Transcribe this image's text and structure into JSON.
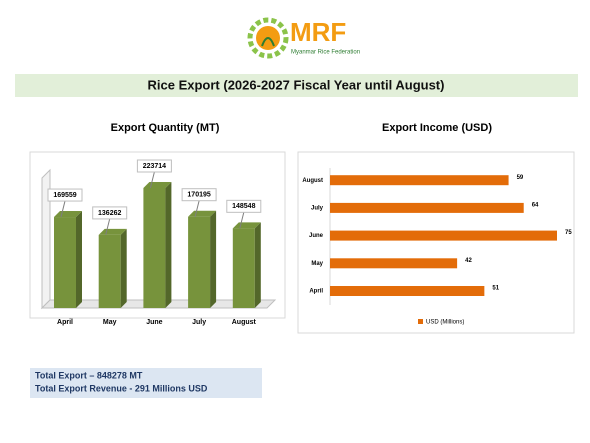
{
  "header": {
    "logo": "MRF",
    "tagline": "Myanmar Rice Federation"
  },
  "banner": {
    "title": "Rice Export (2026-2027 Fiscal Year until August)"
  },
  "chart_data": [
    {
      "type": "bar",
      "title": "Export Quantity (MT)",
      "categories": [
        "April",
        "May",
        "June",
        "July",
        "August"
      ],
      "values": [
        169559,
        136262,
        223714,
        170195,
        148548
      ],
      "color": "#77933c"
    },
    {
      "type": "barh",
      "title": "Export Income (USD)",
      "categories": [
        "April",
        "May",
        "June",
        "July",
        "August"
      ],
      "series": [
        {
          "name": "USD (Millions)",
          "color": "#e36c09",
          "values": [
            51,
            42,
            75,
            64,
            59
          ]
        }
      ]
    }
  ],
  "summary": {
    "lines": [
      "Total Export – 848278 MT",
      "Total Export Revenue  - 291 Millions USD"
    ]
  }
}
